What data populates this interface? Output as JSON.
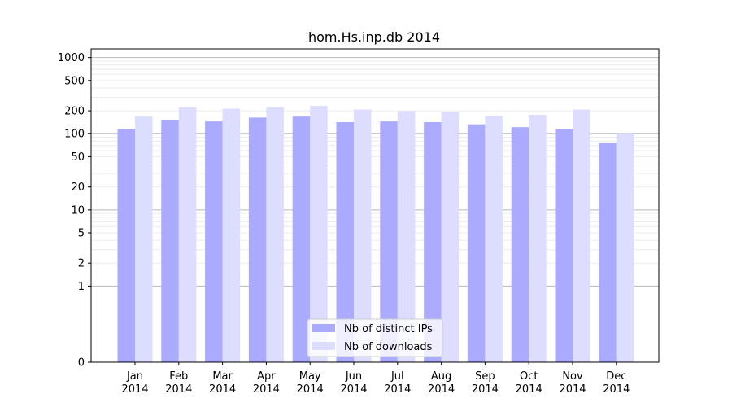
{
  "chart_data": {
    "type": "bar",
    "title": "hom.Hs.inp.db 2014",
    "xlabel": "",
    "ylabel": "",
    "yscale": "symlog",
    "ylim": [
      0,
      1300
    ],
    "yticks": [
      0,
      1,
      2,
      5,
      10,
      20,
      50,
      100,
      200,
      500,
      1000
    ],
    "ytick_labels": [
      "0",
      "1",
      "2",
      "5",
      "10",
      "20",
      "50",
      "100",
      "200",
      "500",
      "1000"
    ],
    "categories": [
      {
        "month": "Jan",
        "year": "2014"
      },
      {
        "month": "Feb",
        "year": "2014"
      },
      {
        "month": "Mar",
        "year": "2014"
      },
      {
        "month": "Apr",
        "year": "2014"
      },
      {
        "month": "May",
        "year": "2014"
      },
      {
        "month": "Jun",
        "year": "2014"
      },
      {
        "month": "Jul",
        "year": "2014"
      },
      {
        "month": "Aug",
        "year": "2014"
      },
      {
        "month": "Sep",
        "year": "2014"
      },
      {
        "month": "Oct",
        "year": "2014"
      },
      {
        "month": "Nov",
        "year": "2014"
      },
      {
        "month": "Dec",
        "year": "2014"
      }
    ],
    "series": [
      {
        "name": "Nb of distinct IPs",
        "color": "#aaaaff",
        "values": [
          115,
          150,
          145,
          163,
          168,
          142,
          145,
          142,
          133,
          122,
          115,
          75
        ]
      },
      {
        "name": "Nb of downloads",
        "color": "#ddddff",
        "values": [
          168,
          222,
          213,
          223,
          232,
          208,
          198,
          195,
          172,
          177,
          208,
          100
        ]
      }
    ],
    "grid": true,
    "legend_position": "lower center"
  }
}
